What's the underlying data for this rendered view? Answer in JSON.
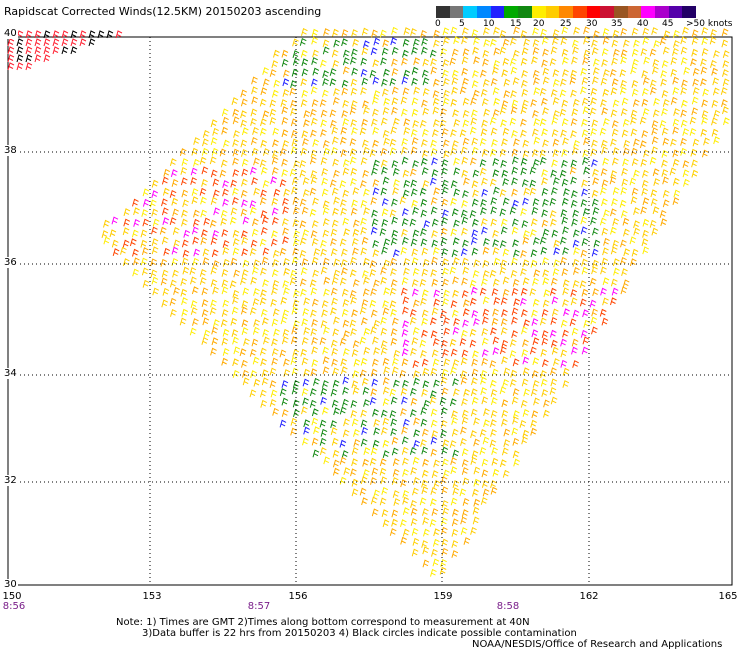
{
  "title": "Rapidscat Corrected Winds(12.5KM) 20150203 ascending",
  "legend": {
    "colors": [
      "#333333",
      "#777777",
      "#00ccff",
      "#0088ff",
      "#2222ff",
      "#00aa00",
      "#118811",
      "#ffee00",
      "#ffcc00",
      "#ff8800",
      "#ff4400",
      "#ff0000",
      "#cc1133",
      "#995522",
      "#cc6633",
      "#ff00ff",
      "#aa00cc",
      "#5500aa",
      "#220066"
    ],
    "labels": [
      "0",
      "5",
      "10",
      "15",
      "20",
      "25",
      "30",
      "35",
      "40",
      "45",
      ">50 knots"
    ]
  },
  "axes": {
    "lat_labels": [
      "40",
      "38",
      "36",
      "34",
      "32",
      "30"
    ],
    "lon_labels": [
      "150",
      "153",
      "156",
      "159",
      "162",
      "165"
    ],
    "time_labels": [
      "8:56",
      "8:57",
      "8:58"
    ]
  },
  "notes": {
    "line1": "Note: 1) Times are GMT 2)Times along bottom correspond to measurement at 40N",
    "line2": "3)Data buffer is 22 hrs from 20150203 4) Black circles indicate possible contamination",
    "line3": "NOAA/NESDIS/Office of Research and Applications"
  }
}
